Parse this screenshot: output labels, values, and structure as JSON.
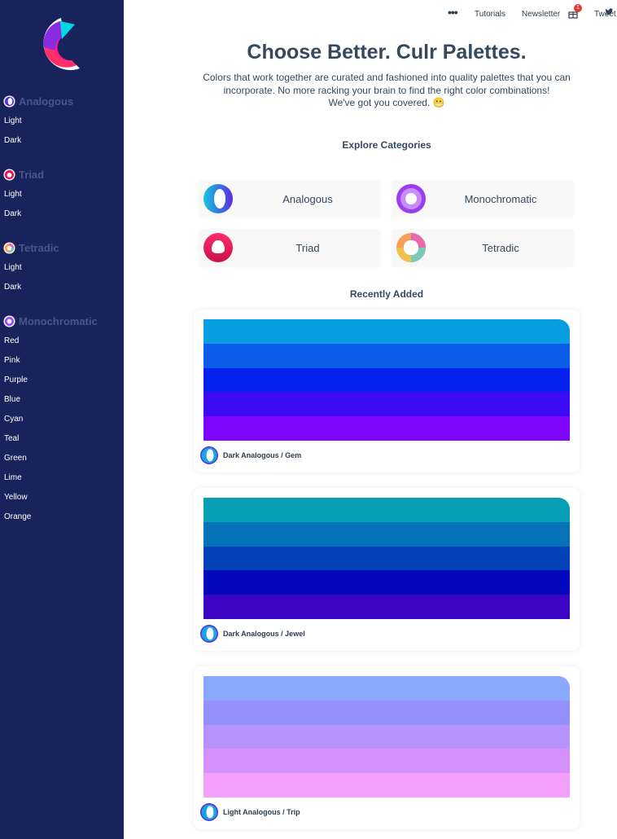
{
  "nav": {
    "more_label": "•••",
    "tutorials": "Tutorials",
    "newsletter": "Newsletter",
    "gift_badge": "1",
    "tweet": "Tweet"
  },
  "sidebar": {
    "groups": [
      {
        "title": "Analogous",
        "items": [
          "Light",
          "Dark"
        ]
      },
      {
        "title": "Triad",
        "items": [
          "Light",
          "Dark"
        ]
      },
      {
        "title": "Tetradic",
        "items": [
          "Light",
          "Dark"
        ]
      },
      {
        "title": "Monochromatic",
        "items": [
          "Red",
          "Pink",
          "Purple",
          "Blue",
          "Cyan",
          "Teal",
          "Green",
          "Lime",
          "Yellow",
          "Orange"
        ]
      }
    ]
  },
  "hero": {
    "title": "Choose Better. Culr Palettes.",
    "subtitle_line1": "Colors that work together are curated and fashioned into quality palettes that you can",
    "subtitle_line2": "incorporate. No more racking your brain to find the right color combinations!",
    "subtitle_line3": "We've got you covered. 😬"
  },
  "explore": {
    "title": "Explore Categories",
    "categories": [
      {
        "label": "Analogous",
        "icon": "analogous-icon"
      },
      {
        "label": "Monochromatic",
        "icon": "monochromatic-icon"
      },
      {
        "label": "Triad",
        "icon": "triad-icon"
      },
      {
        "label": "Tetradic",
        "icon": "tetradic-icon"
      }
    ]
  },
  "recent": {
    "title": "Recently Added",
    "palettes": [
      {
        "label": "Dark Analogous / Gem",
        "colors": [
          "#079ee1",
          "#0a5de8",
          "#0322ef",
          "#3c0bf5",
          "#7e04fc"
        ]
      },
      {
        "label": "Dark Analogous / Jewel",
        "colors": [
          "#079fb5",
          "#0672b7",
          "#0342b8",
          "#0407bb",
          "#3c05c4"
        ]
      },
      {
        "label": "Light Analogous / Trip",
        "colors": [
          "#8aa9fd",
          "#9491fd",
          "#b592fc",
          "#d590fb",
          "#f49efb"
        ]
      }
    ]
  },
  "colors": {
    "sidebar_bg": "#18235b",
    "sidebar_group": "#4a5589",
    "heading": "#34495e"
  }
}
